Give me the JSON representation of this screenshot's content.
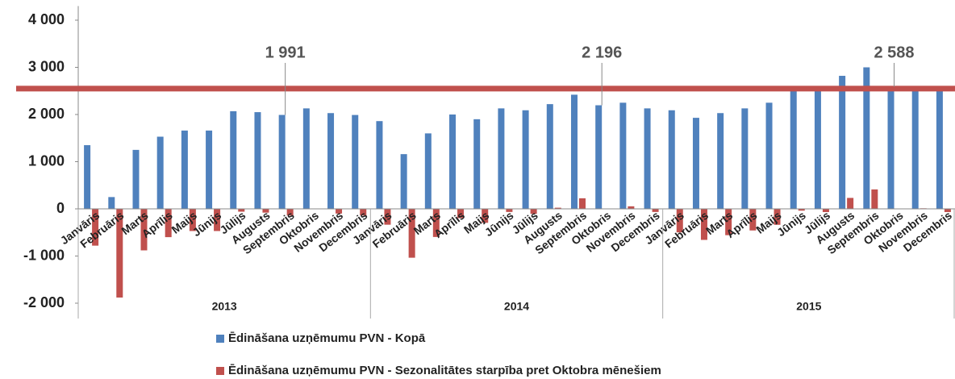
{
  "chart_data": {
    "type": "bar",
    "categories": [
      "Janvāris",
      "Februāris",
      "Marts",
      "Aprīlis",
      "Maijs",
      "Jūnijs",
      "Jūlijs",
      "Augusts",
      "Septembris",
      "Oktobris",
      "Novembris",
      "Decembris",
      "Janvāris",
      "Februāris",
      "Marts",
      "Aprīlis",
      "Maijs",
      "Jūnijs",
      "Jūlijs",
      "Augusts",
      "Septembris",
      "Oktobris",
      "Novembris",
      "Decembris",
      "Janvāris",
      "Februāris",
      "Marts",
      "Aprīlis",
      "Maijs",
      "Jūnijs",
      "Jūlijs",
      "Augusts",
      "Septembris",
      "Oktobris",
      "Novembris",
      "Decembris"
    ],
    "groups": [
      "2013",
      "2014",
      "2015"
    ],
    "series": [
      {
        "name": "Ēdināšana uzņēmumu PVN - Kopā",
        "color": "#4f81bd",
        "values": [
          1350,
          250,
          1250,
          1530,
          1660,
          1660,
          2070,
          2050,
          1991,
          2130,
          2030,
          1990,
          1860,
          1160,
          1600,
          2000,
          1900,
          2130,
          2090,
          2220,
          2420,
          2196,
          2250,
          2130,
          2090,
          1930,
          2030,
          2130,
          2250,
          2550,
          2520,
          2820,
          3000,
          2588,
          2600,
          2520
        ]
      },
      {
        "name": "Ēdināšana uzņēmumu PVN - Sezonalitātes starpība pret Oktobra mēnešiem",
        "color": "#c0504d",
        "values": [
          -780,
          -1880,
          -880,
          -600,
          -470,
          -470,
          -60,
          -80,
          -140,
          0,
          -100,
          -140,
          -336,
          -1036,
          -596,
          -196,
          -296,
          -66,
          -106,
          24,
          224,
          0,
          54,
          -66,
          -498,
          -658,
          -558,
          -458,
          -338,
          -38,
          -68,
          232,
          412,
          0,
          12,
          -68
        ]
      }
    ],
    "annotations": [
      {
        "label": "1 991",
        "value": 1991,
        "category": 8
      },
      {
        "label": "2 196",
        "value": 2196,
        "category": 21
      },
      {
        "label": "2 588",
        "value": 2588,
        "category": 33
      }
    ],
    "reference_line": {
      "value": 2550,
      "color": "#c0504d"
    },
    "ylim": [
      -2300,
      4300
    ],
    "yticks": [
      {
        "value": -2000,
        "label": "-2 000"
      },
      {
        "value": -1000,
        "label": "-1 000"
      },
      0,
      {
        "value": 1000,
        "label": "1 000"
      },
      {
        "value": 2000,
        "label": "2 000"
      },
      {
        "value": 3000,
        "label": "3 000"
      },
      {
        "value": 4000,
        "label": "4 000"
      }
    ]
  }
}
